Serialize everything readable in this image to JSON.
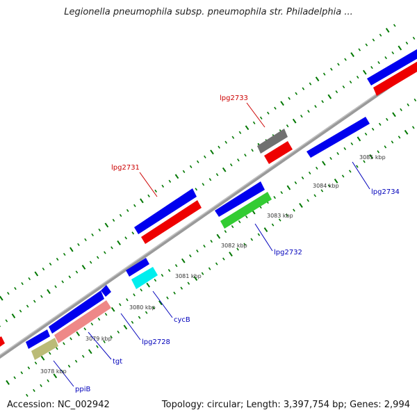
{
  "title": "Legionella pneumophila subsp. pneumophila str. Philadelphia ...",
  "footer": {
    "accession": "Accession: NC_002942",
    "topology": "Topology: circular; Length: 3,397,754 bp; Genes: 2,994"
  },
  "colors": {
    "blue": "#0000ee",
    "red": "#ee0000",
    "gray": "#707070",
    "green": "#33cc33",
    "cyan": "#00eeee",
    "pink": "#ee8888",
    "khaki": "#bbbb77",
    "backbone": "#999999",
    "tick": "#007700",
    "label_red": "#cc0000",
    "label_blue": "#0000bb"
  },
  "scale_labels": [
    "3078 kbp",
    "3079 kbp",
    "3080 kbp",
    "3081 kbp",
    "3082 kbp",
    "3083 kbp",
    "3084 kbp",
    "3085 kbp"
  ],
  "gene_labels": [
    {
      "text": "lpg2733",
      "color": "label_red"
    },
    {
      "text": "lpg2731",
      "color": "label_red"
    },
    {
      "text": "lpg2734",
      "color": "label_blue"
    },
    {
      "text": "lpg2732",
      "color": "label_blue"
    },
    {
      "text": "cycB",
      "color": "label_blue"
    },
    {
      "text": "lpg2728",
      "color": "label_blue"
    },
    {
      "text": "tgt",
      "color": "label_blue"
    },
    {
      "text": "ppiB",
      "color": "label_blue"
    }
  ]
}
